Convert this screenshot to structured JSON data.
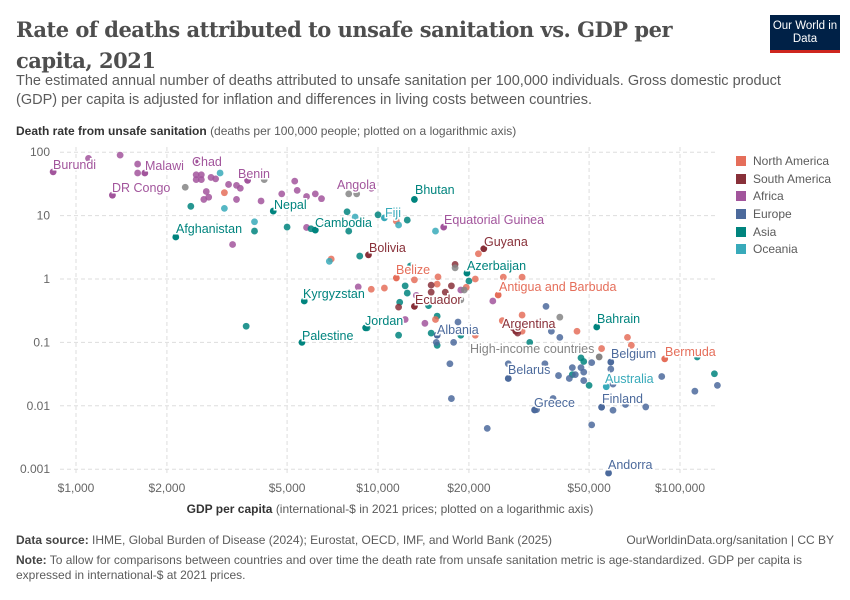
{
  "header": {
    "title": "Rate of deaths attributed to unsafe sanitation vs. GDP per capita, 2021",
    "subtitle": "The estimated annual number of deaths attributed to unsafe sanitation per 100,000 individuals. Gross domestic product (GDP) per capita is adjusted for inflation and differences in living costs between countries.",
    "logo": "Our World in Data"
  },
  "colors": {
    "North America": "#e56e5a",
    "South America": "#883039",
    "Africa": "#a2559c",
    "Europe": "#4c6a9c",
    "Asia": "#00847e",
    "Oceania": "#38aaba",
    "Other": "#858585"
  },
  "footer": {
    "source_label": "Data source:",
    "source": "IHME, Global Burden of Disease (2024); Eurostat, OECD, IMF, and World Bank (2025)",
    "link": "OurWorldinData.org/sanitation | CC BY",
    "note_label": "Note:",
    "note": "To allow for comparisons between countries and over time the death rate from unsafe sanitation metric is age-standardized. GDP per capita is expressed in international-$ at 2021 prices."
  },
  "chart_data": {
    "type": "scatter",
    "title": "Rate of deaths attributed to unsafe sanitation vs. GDP per capita, 2021",
    "ylabel_bold": "Death rate from unsafe sanitation",
    "ylabel_rest": "(deaths per 100,000 people; plotted on a logarithmic axis)",
    "xlabel_bold": "GDP per capita",
    "xlabel_rest": "(international-$ in 2021 prices; plotted on a logarithmic axis)",
    "x_scale": "log",
    "y_scale": "log",
    "xlim": [
      800,
      135000
    ],
    "ylim": [
      0.0008,
      115
    ],
    "grid": true,
    "legend_position": "right",
    "x_ticks": [
      {
        "v": 1000,
        "label": "$1,000"
      },
      {
        "v": 2000,
        "label": "$2,000"
      },
      {
        "v": 5000,
        "label": "$5,000"
      },
      {
        "v": 10000,
        "label": "$10,000"
      },
      {
        "v": 20000,
        "label": "$20,000"
      },
      {
        "v": 50000,
        "label": "$50,000"
      },
      {
        "v": 100000,
        "label": "$100,000"
      }
    ],
    "y_ticks": [
      {
        "v": 100,
        "label": "100"
      },
      {
        "v": 10,
        "label": "10"
      },
      {
        "v": 1,
        "label": "1"
      },
      {
        "v": 0.1,
        "label": "0.1"
      },
      {
        "v": 0.01,
        "label": "0.01"
      },
      {
        "v": 0.001,
        "label": "0.001"
      }
    ],
    "legend": [
      "North America",
      "South America",
      "Africa",
      "Europe",
      "Asia",
      "Oceania"
    ],
    "labeled": [
      {
        "name": "Burundi",
        "r": "Africa",
        "x": 840,
        "y": 49
      },
      {
        "name": "Malawi",
        "r": "Africa",
        "x": 1690,
        "y": 47
      },
      {
        "name": "DR Congo",
        "r": "Africa",
        "x": 1320,
        "y": 21
      },
      {
        "name": "Chad",
        "r": "Africa",
        "x": 2500,
        "y": 75
      },
      {
        "name": "Benin",
        "r": "Africa",
        "x": 3700,
        "y": 36
      },
      {
        "name": "Angola",
        "r": "Africa",
        "x": 9500,
        "y": 27
      },
      {
        "name": "Nepal",
        "r": "Asia",
        "x": 4500,
        "y": 11.8
      },
      {
        "name": "Afghanistan",
        "r": "Asia",
        "x": 2140,
        "y": 4.6
      },
      {
        "name": "Cambodia",
        "r": "Asia",
        "x": 6200,
        "y": 5.9
      },
      {
        "name": "Bhutan",
        "r": "Asia",
        "x": 13200,
        "y": 18
      },
      {
        "name": "Fiji",
        "r": "Oceania",
        "x": 10500,
        "y": 9.2
      },
      {
        "name": "Equatorial Guinea",
        "r": "Africa",
        "x": 16500,
        "y": 6.6
      },
      {
        "name": "Guyana",
        "r": "South America",
        "x": 22400,
        "y": 3.0
      },
      {
        "name": "Bolivia",
        "r": "South America",
        "x": 9300,
        "y": 2.4
      },
      {
        "name": "Azerbaijan",
        "r": "Asia",
        "x": 19700,
        "y": 1.24
      },
      {
        "name": "Belize",
        "r": "North America",
        "x": 11500,
        "y": 1.04
      },
      {
        "name": "Antigua and Barbuda",
        "r": "North America",
        "x": 25000,
        "y": 0.56
      },
      {
        "name": "Kyrgyzstan",
        "r": "Asia",
        "x": 5700,
        "y": 0.45
      },
      {
        "name": "Ecuador",
        "r": "South America",
        "x": 13200,
        "y": 0.37
      },
      {
        "name": "Jordan",
        "r": "Asia",
        "x": 9100,
        "y": 0.17
      },
      {
        "name": "Palestine",
        "r": "Asia",
        "x": 5600,
        "y": 0.1
      },
      {
        "name": "Albania",
        "r": "Europe",
        "x": 15700,
        "y": 0.13
      },
      {
        "name": "Argentina",
        "r": "South America",
        "x": 28600,
        "y": 0.15
      },
      {
        "name": "Bahrain",
        "r": "Asia",
        "x": 53000,
        "y": 0.175
      },
      {
        "name": "High-income countries",
        "r": "Other",
        "x": 54000,
        "y": 0.059
      },
      {
        "name": "Belgium",
        "r": "Europe",
        "x": 59000,
        "y": 0.049
      },
      {
        "name": "Bermuda",
        "r": "North America",
        "x": 89000,
        "y": 0.055
      },
      {
        "name": "Belarus",
        "r": "Europe",
        "x": 27000,
        "y": 0.027
      },
      {
        "name": "Australia",
        "r": "Oceania",
        "x": 57000,
        "y": 0.02
      },
      {
        "name": "Greece",
        "r": "Europe",
        "x": 33000,
        "y": 0.0086
      },
      {
        "name": "Finland",
        "r": "Europe",
        "x": 55000,
        "y": 0.0095
      },
      {
        "name": "Andorra",
        "r": "Europe",
        "x": 58000,
        "y": 0.00087
      }
    ],
    "points": [
      {
        "r": "Africa",
        "x": 1100,
        "y": 80
      },
      {
        "r": "Africa",
        "x": 1400,
        "y": 90
      },
      {
        "r": "Africa",
        "x": 1600,
        "y": 65
      },
      {
        "r": "Africa",
        "x": 1600,
        "y": 47
      },
      {
        "r": "Africa",
        "x": 2500,
        "y": 44
      },
      {
        "r": "Africa",
        "x": 2600,
        "y": 44
      },
      {
        "r": "Africa",
        "x": 2500,
        "y": 37
      },
      {
        "r": "Africa",
        "x": 2600,
        "y": 37
      },
      {
        "r": "Africa",
        "x": 2800,
        "y": 40
      },
      {
        "r": "Africa",
        "x": 2900,
        "y": 38
      },
      {
        "r": "Africa",
        "x": 2700,
        "y": 24
      },
      {
        "r": "Africa",
        "x": 2750,
        "y": 19.5
      },
      {
        "r": "Africa",
        "x": 2650,
        "y": 18
      },
      {
        "r": "Africa",
        "x": 3200,
        "y": 31
      },
      {
        "r": "Africa",
        "x": 3400,
        "y": 30
      },
      {
        "r": "Africa",
        "x": 3500,
        "y": 27
      },
      {
        "r": "Africa",
        "x": 3400,
        "y": 18
      },
      {
        "r": "Africa",
        "x": 4100,
        "y": 17
      },
      {
        "r": "Africa",
        "x": 4800,
        "y": 22
      },
      {
        "r": "Africa",
        "x": 5300,
        "y": 35
      },
      {
        "r": "Africa",
        "x": 5400,
        "y": 25
      },
      {
        "r": "Africa",
        "x": 5800,
        "y": 20
      },
      {
        "r": "Africa",
        "x": 6200,
        "y": 22
      },
      {
        "r": "Africa",
        "x": 6500,
        "y": 18.5
      },
      {
        "r": "Africa",
        "x": 5800,
        "y": 6.5
      },
      {
        "r": "Africa",
        "x": 3300,
        "y": 3.5
      },
      {
        "r": "Africa",
        "x": 8600,
        "y": 0.75
      },
      {
        "r": "Africa",
        "x": 13400,
        "y": 0.55
      },
      {
        "r": "Africa",
        "x": 18800,
        "y": 0.67
      },
      {
        "r": "Africa",
        "x": 12300,
        "y": 0.23
      },
      {
        "r": "Africa",
        "x": 14300,
        "y": 0.2
      },
      {
        "r": "Africa",
        "x": 24000,
        "y": 0.45
      },
      {
        "r": "Asia",
        "x": 2400,
        "y": 14
      },
      {
        "r": "Asia",
        "x": 3900,
        "y": 5.7
      },
      {
        "r": "Asia",
        "x": 5000,
        "y": 6.6
      },
      {
        "r": "Asia",
        "x": 6000,
        "y": 6.2
      },
      {
        "r": "Asia",
        "x": 8000,
        "y": 5.7
      },
      {
        "r": "Asia",
        "x": 8700,
        "y": 2.3
      },
      {
        "r": "Asia",
        "x": 7900,
        "y": 11.5
      },
      {
        "r": "Asia",
        "x": 10000,
        "y": 10.3
      },
      {
        "r": "Asia",
        "x": 12500,
        "y": 8.5
      },
      {
        "r": "Asia",
        "x": 12800,
        "y": 1.6
      },
      {
        "r": "Asia",
        "x": 12300,
        "y": 0.78
      },
      {
        "r": "Asia",
        "x": 12500,
        "y": 0.6
      },
      {
        "r": "Asia",
        "x": 11800,
        "y": 0.43
      },
      {
        "r": "Asia",
        "x": 14700,
        "y": 0.38
      },
      {
        "r": "Asia",
        "x": 15700,
        "y": 0.26
      },
      {
        "r": "Asia",
        "x": 15700,
        "y": 0.09
      },
      {
        "r": "Asia",
        "x": 11700,
        "y": 0.13
      },
      {
        "r": "Asia",
        "x": 20000,
        "y": 0.93
      },
      {
        "r": "Asia",
        "x": 15000,
        "y": 0.14
      },
      {
        "r": "Asia",
        "x": 18800,
        "y": 0.13
      },
      {
        "r": "Asia",
        "x": 31800,
        "y": 0.1
      },
      {
        "r": "Asia",
        "x": 45500,
        "y": 0.08
      },
      {
        "r": "Asia",
        "x": 47000,
        "y": 0.057
      },
      {
        "r": "Asia",
        "x": 48000,
        "y": 0.05
      },
      {
        "r": "Asia",
        "x": 44000,
        "y": 0.031
      },
      {
        "r": "Asia",
        "x": 50000,
        "y": 0.021
      },
      {
        "r": "Asia",
        "x": 114000,
        "y": 0.059
      },
      {
        "r": "Asia",
        "x": 130000,
        "y": 0.032
      },
      {
        "r": "Asia",
        "x": 3660,
        "y": 0.18
      },
      {
        "r": "Asia",
        "x": 9200,
        "y": 0.17
      },
      {
        "r": "North America",
        "x": 3100,
        "y": 23
      },
      {
        "r": "North America",
        "x": 7000,
        "y": 7.4
      },
      {
        "r": "North America",
        "x": 11500,
        "y": 8.2
      },
      {
        "r": "North America",
        "x": 7000,
        "y": 2.07
      },
      {
        "r": "North America",
        "x": 10500,
        "y": 0.72
      },
      {
        "r": "North America",
        "x": 9500,
        "y": 0.69
      },
      {
        "r": "North America",
        "x": 13200,
        "y": 0.97
      },
      {
        "r": "North America",
        "x": 15800,
        "y": 1.08
      },
      {
        "r": "North America",
        "x": 15700,
        "y": 0.83
      },
      {
        "r": "North America",
        "x": 19600,
        "y": 0.74
      },
      {
        "r": "North America",
        "x": 21000,
        "y": 1.0
      },
      {
        "r": "North America",
        "x": 26000,
        "y": 1.07
      },
      {
        "r": "North America",
        "x": 30000,
        "y": 1.07
      },
      {
        "r": "North America",
        "x": 25800,
        "y": 0.22
      },
      {
        "r": "North America",
        "x": 15500,
        "y": 0.23
      },
      {
        "r": "North America",
        "x": 21000,
        "y": 0.13
      },
      {
        "r": "North America",
        "x": 30000,
        "y": 0.15
      },
      {
        "r": "North America",
        "x": 45600,
        "y": 0.15
      },
      {
        "r": "North America",
        "x": 67000,
        "y": 0.12
      },
      {
        "r": "North America",
        "x": 69000,
        "y": 0.09
      },
      {
        "r": "North America",
        "x": 55000,
        "y": 0.08
      },
      {
        "r": "North America",
        "x": 30000,
        "y": 0.27
      },
      {
        "r": "North America",
        "x": 21500,
        "y": 2.5
      },
      {
        "r": "South America",
        "x": 18000,
        "y": 1.7
      },
      {
        "r": "South America",
        "x": 15000,
        "y": 0.8
      },
      {
        "r": "South America",
        "x": 15000,
        "y": 0.62
      },
      {
        "r": "South America",
        "x": 17500,
        "y": 0.78
      },
      {
        "r": "South America",
        "x": 16700,
        "y": 0.62
      },
      {
        "r": "South America",
        "x": 28000,
        "y": 0.17
      },
      {
        "r": "South America",
        "x": 29000,
        "y": 0.14
      },
      {
        "r": "South America",
        "x": 11700,
        "y": 0.36
      },
      {
        "r": "Europe",
        "x": 18400,
        "y": 0.21
      },
      {
        "r": "Europe",
        "x": 15600,
        "y": 0.1
      },
      {
        "r": "Europe",
        "x": 17800,
        "y": 0.1
      },
      {
        "r": "Europe",
        "x": 17300,
        "y": 0.046
      },
      {
        "r": "Europe",
        "x": 17500,
        "y": 0.013
      },
      {
        "r": "Europe",
        "x": 23000,
        "y": 0.0044
      },
      {
        "r": "Europe",
        "x": 36000,
        "y": 0.37
      },
      {
        "r": "Europe",
        "x": 37500,
        "y": 0.15
      },
      {
        "r": "Europe",
        "x": 40000,
        "y": 0.12
      },
      {
        "r": "Europe",
        "x": 35700,
        "y": 0.046
      },
      {
        "r": "Europe",
        "x": 27000,
        "y": 0.046
      },
      {
        "r": "Europe",
        "x": 39600,
        "y": 0.03
      },
      {
        "r": "Europe",
        "x": 44000,
        "y": 0.04
      },
      {
        "r": "Europe",
        "x": 45000,
        "y": 0.031
      },
      {
        "r": "Europe",
        "x": 43000,
        "y": 0.027
      },
      {
        "r": "Europe",
        "x": 47000,
        "y": 0.04
      },
      {
        "r": "Europe",
        "x": 48000,
        "y": 0.034
      },
      {
        "r": "Europe",
        "x": 48000,
        "y": 0.025
      },
      {
        "r": "Europe",
        "x": 51000,
        "y": 0.048
      },
      {
        "r": "Europe",
        "x": 59000,
        "y": 0.038
      },
      {
        "r": "Europe",
        "x": 60000,
        "y": 0.022
      },
      {
        "r": "Europe",
        "x": 66000,
        "y": 0.0105
      },
      {
        "r": "Europe",
        "x": 77000,
        "y": 0.0096
      },
      {
        "r": "Europe",
        "x": 87000,
        "y": 0.029
      },
      {
        "r": "Europe",
        "x": 112000,
        "y": 0.017
      },
      {
        "r": "Europe",
        "x": 133000,
        "y": 0.021
      },
      {
        "r": "Europe",
        "x": 51000,
        "y": 0.005
      },
      {
        "r": "Europe",
        "x": 60000,
        "y": 0.0085
      },
      {
        "r": "Europe",
        "x": 33500,
        "y": 0.0087
      },
      {
        "r": "Europe",
        "x": 38000,
        "y": 0.013
      },
      {
        "r": "Oceania",
        "x": 3000,
        "y": 47
      },
      {
        "r": "Oceania",
        "x": 3900,
        "y": 42
      },
      {
        "r": "Oceania",
        "x": 3100,
        "y": 13
      },
      {
        "r": "Oceania",
        "x": 3900,
        "y": 8
      },
      {
        "r": "Oceania",
        "x": 6700,
        "y": 7.4
      },
      {
        "r": "Oceania",
        "x": 11700,
        "y": 7.1
      },
      {
        "r": "Oceania",
        "x": 6900,
        "y": 1.9
      },
      {
        "r": "Oceania",
        "x": 15500,
        "y": 5.7
      },
      {
        "r": "Oceania",
        "x": 8400,
        "y": 9.5
      },
      {
        "r": "Other",
        "x": 2300,
        "y": 28
      },
      {
        "r": "Other",
        "x": 4200,
        "y": 37
      },
      {
        "r": "Other",
        "x": 8000,
        "y": 22
      },
      {
        "r": "Other",
        "x": 8500,
        "y": 22
      },
      {
        "r": "Other",
        "x": 18000,
        "y": 1.5
      },
      {
        "r": "Other",
        "x": 19300,
        "y": 0.67
      },
      {
        "r": "Other",
        "x": 18800,
        "y": 0.47
      },
      {
        "r": "Other",
        "x": 40000,
        "y": 0.25
      }
    ]
  }
}
